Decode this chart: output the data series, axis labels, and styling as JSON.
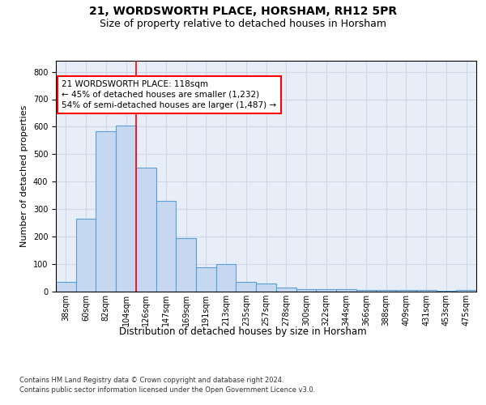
{
  "title_line1": "21, WORDSWORTH PLACE, HORSHAM, RH12 5PR",
  "title_line2": "Size of property relative to detached houses in Horsham",
  "xlabel": "Distribution of detached houses by size in Horsham",
  "ylabel": "Number of detached properties",
  "footer_line1": "Contains HM Land Registry data © Crown copyright and database right 2024.",
  "footer_line2": "Contains public sector information licensed under the Open Government Licence v3.0.",
  "categories": [
    "38sqm",
    "60sqm",
    "82sqm",
    "104sqm",
    "126sqm",
    "147sqm",
    "169sqm",
    "191sqm",
    "213sqm",
    "235sqm",
    "257sqm",
    "278sqm",
    "300sqm",
    "322sqm",
    "344sqm",
    "366sqm",
    "388sqm",
    "409sqm",
    "431sqm",
    "453sqm",
    "475sqm"
  ],
  "values": [
    35,
    265,
    585,
    605,
    450,
    330,
    195,
    88,
    100,
    35,
    30,
    15,
    10,
    10,
    10,
    5,
    5,
    5,
    5,
    2,
    5
  ],
  "bar_color": "#c5d8f0",
  "bar_edge_color": "#5a9fd4",
  "bar_edge_width": 0.8,
  "ylim": [
    0,
    840
  ],
  "yticks": [
    0,
    100,
    200,
    300,
    400,
    500,
    600,
    700,
    800
  ],
  "red_line_x": 4.0,
  "annotation_line1": "21 WORDSWORTH PLACE: 118sqm",
  "annotation_line2": "← 45% of detached houses are smaller (1,232)",
  "annotation_line3": "54% of semi-detached houses are larger (1,487) →",
  "grid_color": "#d0d8e8",
  "background_color": "#e8eef8",
  "title_fontsize": 10,
  "subtitle_fontsize": 9,
  "tick_fontsize": 7,
  "ylabel_fontsize": 8,
  "xlabel_fontsize": 8.5,
  "annotation_fontsize": 7.5,
  "footer_fontsize": 6
}
